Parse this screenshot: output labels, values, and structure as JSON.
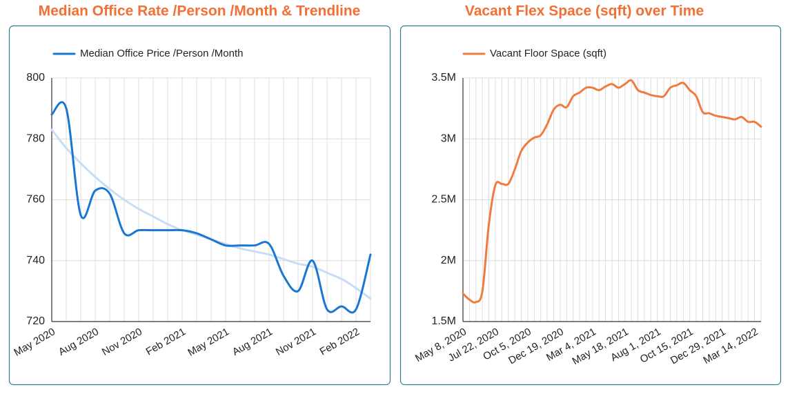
{
  "chart_data": [
    {
      "type": "line",
      "title": "Median Office Rate /Person /Month & Trendline",
      "categories": [
        "May 2020",
        null,
        null,
        "Aug 2020",
        null,
        null,
        "Nov 2020",
        null,
        null,
        "Feb 2021",
        null,
        null,
        "May 2021",
        null,
        null,
        "Aug 2021",
        null,
        null,
        "Nov 2021",
        null,
        null,
        "Feb 2022",
        null
      ],
      "series": [
        {
          "name": "Median Office Price /Person /Month",
          "color": "#1976d2",
          "values": [
            788,
            790,
            755,
            763,
            762,
            749,
            750,
            750,
            750,
            750,
            749,
            747,
            745,
            745,
            745,
            745.5,
            735,
            730,
            740,
            724,
            725,
            724,
            742
          ]
        },
        {
          "color": "#c6ddf5",
          "values": [
            783,
            777,
            772,
            767.5,
            763.5,
            760,
            757,
            754.5,
            752,
            750,
            748.5,
            747,
            745.5,
            744,
            743,
            742,
            740.5,
            739,
            738,
            736,
            734,
            731,
            727.5
          ]
        }
      ],
      "ylim": [
        720,
        800
      ],
      "yticks": [
        720,
        740,
        760,
        780,
        800
      ],
      "grid": true,
      "legend": "top-left"
    },
    {
      "type": "line",
      "title": "Vacant Flex Space (sqft) over Time",
      "categories": [
        "May 8, 2020",
        null,
        null,
        null,
        null,
        "Jul 22, 2020",
        null,
        null,
        null,
        null,
        "Oct 5, 2020",
        null,
        null,
        null,
        null,
        "Dec 19, 2020",
        null,
        null,
        null,
        null,
        "Mar 4, 2021",
        null,
        null,
        null,
        null,
        "May 18, 2021",
        null,
        null,
        null,
        null,
        "Aug 1, 2021",
        null,
        null,
        null,
        null,
        "Oct 15, 2021",
        null,
        null,
        null,
        null,
        "Dec 29, 2021",
        null,
        null,
        null,
        null,
        "Mar 14, 2022",
        null
      ],
      "series": [
        {
          "name": "Vacant Floor Space (sqft)",
          "color": "#f07b3f",
          "values": [
            1730000,
            1680000,
            1660000,
            1750000,
            2300000,
            2620000,
            2630000,
            2630000,
            2750000,
            2900000,
            2970000,
            3010000,
            3030000,
            3120000,
            3240000,
            3280000,
            3260000,
            3350000,
            3380000,
            3420000,
            3420000,
            3400000,
            3430000,
            3450000,
            3420000,
            3450000,
            3480000,
            3400000,
            3380000,
            3360000,
            3350000,
            3350000,
            3420000,
            3440000,
            3460000,
            3400000,
            3350000,
            3220000,
            3210000,
            3190000,
            3180000,
            3170000,
            3160000,
            3180000,
            3140000,
            3140000,
            3100000
          ]
        }
      ],
      "ylim": [
        1500000,
        3500000
      ],
      "yticks": [
        {
          "value": 1500000,
          "label": "1.5M"
        },
        {
          "value": 2000000,
          "label": "2M"
        },
        {
          "value": 2500000,
          "label": "2.5M"
        },
        {
          "value": 3000000,
          "label": "3M"
        },
        {
          "value": 3500000,
          "label": "3.5M"
        }
      ],
      "grid": true,
      "legend": "top-left"
    }
  ]
}
